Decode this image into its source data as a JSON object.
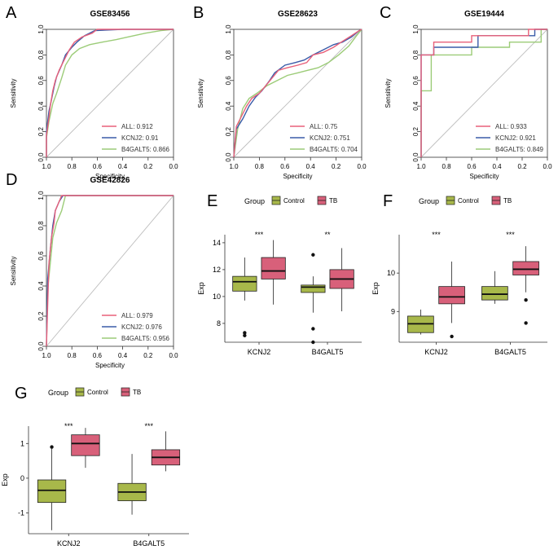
{
  "colors": {
    "all": "#e8607a",
    "kcnj2": "#3a5ba8",
    "b4galt5": "#9ccc78",
    "control": "#a8b84a",
    "tb": "#d8607a",
    "diag": "#bdbdbd",
    "axis": "#333333"
  },
  "chart_data": [
    {
      "panel": "A",
      "type": "line",
      "title": "GSE83456",
      "xlabel": "Specificity",
      "ylabel": "Sensitivity",
      "xticks": [
        "1.0",
        "0.8",
        "0.6",
        "0.4",
        "0.2",
        "0.0"
      ],
      "yticks": [
        "0.0",
        "0.2",
        "0.4",
        "0.6",
        "0.8",
        "1.0"
      ],
      "xlim": [
        1.0,
        0.0
      ],
      "ylim": [
        0.0,
        1.0
      ],
      "legend": "bottom-right",
      "series": [
        {
          "name": "ALL",
          "auc": "0.912",
          "legend_label": "ALL: 0.912",
          "color_key": "all",
          "points": [
            [
              1,
              0
            ],
            [
              1,
              0.17
            ],
            [
              0.98,
              0.31
            ],
            [
              0.97,
              0.4
            ],
            [
              0.95,
              0.52
            ],
            [
              0.93,
              0.6
            ],
            [
              0.9,
              0.68
            ],
            [
              0.86,
              0.76
            ],
            [
              0.82,
              0.84
            ],
            [
              0.78,
              0.9
            ],
            [
              0.72,
              0.94
            ],
            [
              0.64,
              0.97
            ],
            [
              0.6,
              1
            ],
            [
              0,
              1
            ]
          ]
        },
        {
          "name": "KCNJ2",
          "auc": "0.91",
          "legend_label": "KCNJ2: 0.91",
          "color_key": "kcnj2",
          "points": [
            [
              1,
              0
            ],
            [
              1,
              0.2
            ],
            [
              0.98,
              0.36
            ],
            [
              0.96,
              0.45
            ],
            [
              0.94,
              0.55
            ],
            [
              0.92,
              0.63
            ],
            [
              0.88,
              0.72
            ],
            [
              0.85,
              0.8
            ],
            [
              0.8,
              0.86
            ],
            [
              0.76,
              0.9
            ],
            [
              0.7,
              0.95
            ],
            [
              0.62,
              0.99
            ],
            [
              0.4,
              1
            ],
            [
              0,
              1
            ]
          ]
        },
        {
          "name": "B4GALT5",
          "auc": "0.866",
          "legend_label": "B4GALT5: 0.866",
          "color_key": "b4galt5",
          "points": [
            [
              1,
              0
            ],
            [
              1,
              0.15
            ],
            [
              0.98,
              0.28
            ],
            [
              0.95,
              0.42
            ],
            [
              0.92,
              0.5
            ],
            [
              0.88,
              0.62
            ],
            [
              0.85,
              0.72
            ],
            [
              0.8,
              0.8
            ],
            [
              0.74,
              0.85
            ],
            [
              0.66,
              0.88
            ],
            [
              0.56,
              0.9
            ],
            [
              0.45,
              0.92
            ],
            [
              0.36,
              0.94
            ],
            [
              0.22,
              0.97
            ],
            [
              0.1,
              0.99
            ],
            [
              0,
              1
            ]
          ]
        }
      ]
    },
    {
      "panel": "B",
      "type": "line",
      "title": "GSE28623",
      "xlabel": "Specificity",
      "ylabel": "Sensitivity",
      "xticks": [
        "1.0",
        "0.8",
        "0.6",
        "0.4",
        "0.2",
        "0.0"
      ],
      "yticks": [
        "0.0",
        "0.2",
        "0.4",
        "0.6",
        "0.8",
        "1.0"
      ],
      "xlim": [
        1.0,
        0.0
      ],
      "ylim": [
        0.0,
        1.0
      ],
      "legend": "bottom-right",
      "series": [
        {
          "name": "ALL",
          "auc": "0.75",
          "legend_label": "ALL: 0.75",
          "color_key": "all",
          "points": [
            [
              1,
              0
            ],
            [
              0.98,
              0.24
            ],
            [
              0.94,
              0.32
            ],
            [
              0.9,
              0.4
            ],
            [
              0.86,
              0.46
            ],
            [
              0.8,
              0.5
            ],
            [
              0.75,
              0.56
            ],
            [
              0.7,
              0.62
            ],
            [
              0.65,
              0.68
            ],
            [
              0.58,
              0.7
            ],
            [
              0.5,
              0.72
            ],
            [
              0.43,
              0.74
            ],
            [
              0.38,
              0.8
            ],
            [
              0.3,
              0.82
            ],
            [
              0.22,
              0.86
            ],
            [
              0.16,
              0.9
            ],
            [
              0.08,
              0.95
            ],
            [
              0.02,
              0.99
            ],
            [
              0,
              1
            ]
          ]
        },
        {
          "name": "KCNJ2",
          "auc": "0.751",
          "legend_label": "KCNJ2: 0.751",
          "color_key": "kcnj2",
          "points": [
            [
              1,
              0
            ],
            [
              0.98,
              0.22
            ],
            [
              0.93,
              0.3
            ],
            [
              0.88,
              0.4
            ],
            [
              0.83,
              0.47
            ],
            [
              0.78,
              0.52
            ],
            [
              0.72,
              0.6
            ],
            [
              0.68,
              0.66
            ],
            [
              0.6,
              0.72
            ],
            [
              0.52,
              0.74
            ],
            [
              0.45,
              0.76
            ],
            [
              0.38,
              0.8
            ],
            [
              0.3,
              0.84
            ],
            [
              0.22,
              0.88
            ],
            [
              0.15,
              0.9
            ],
            [
              0.08,
              0.94
            ],
            [
              0.02,
              0.99
            ],
            [
              0,
              1
            ]
          ]
        },
        {
          "name": "B4GALT5",
          "auc": "0.704",
          "legend_label": "B4GALT5: 0.704",
          "color_key": "b4galt5",
          "points": [
            [
              1,
              0
            ],
            [
              0.97,
              0.22
            ],
            [
              0.93,
              0.38
            ],
            [
              0.88,
              0.46
            ],
            [
              0.82,
              0.5
            ],
            [
              0.74,
              0.56
            ],
            [
              0.66,
              0.6
            ],
            [
              0.58,
              0.64
            ],
            [
              0.5,
              0.66
            ],
            [
              0.42,
              0.68
            ],
            [
              0.34,
              0.7
            ],
            [
              0.26,
              0.74
            ],
            [
              0.18,
              0.8
            ],
            [
              0.1,
              0.87
            ],
            [
              0.04,
              0.95
            ],
            [
              0,
              1
            ]
          ]
        }
      ]
    },
    {
      "panel": "C",
      "type": "line",
      "title": "GSE19444",
      "xlabel": "Specificity",
      "ylabel": "Sensitivity",
      "xticks": [
        "1.0",
        "0.8",
        "0.6",
        "0.4",
        "0.2",
        "0.0"
      ],
      "yticks": [
        "0.0",
        "0.2",
        "0.4",
        "0.6",
        "0.8",
        "1.0"
      ],
      "xlim": [
        1.0,
        0.0
      ],
      "ylim": [
        0.0,
        1.0
      ],
      "legend": "bottom-right",
      "series": [
        {
          "name": "ALL",
          "auc": "0.933",
          "legend_label": "ALL: 0.933",
          "color_key": "all",
          "points": [
            [
              1,
              0
            ],
            [
              1,
              0.8
            ],
            [
              0.9,
              0.8
            ],
            [
              0.9,
              0.9
            ],
            [
              0.6,
              0.9
            ],
            [
              0.6,
              0.95
            ],
            [
              0.15,
              0.95
            ],
            [
              0.15,
              1
            ],
            [
              0,
              1
            ]
          ]
        },
        {
          "name": "KCNJ2",
          "auc": "0.921",
          "legend_label": "KCNJ2: 0.921",
          "color_key": "kcnj2",
          "points": [
            [
              1,
              0
            ],
            [
              1,
              0.8
            ],
            [
              0.9,
              0.8
            ],
            [
              0.9,
              0.86
            ],
            [
              0.55,
              0.86
            ],
            [
              0.55,
              0.95
            ],
            [
              0.1,
              0.95
            ],
            [
              0.1,
              1
            ],
            [
              0,
              1
            ]
          ]
        },
        {
          "name": "B4GALT5",
          "auc": "0.849",
          "legend_label": "B4GALT5: 0.849",
          "color_key": "b4galt5",
          "points": [
            [
              1,
              0
            ],
            [
              1,
              0.52
            ],
            [
              0.92,
              0.52
            ],
            [
              0.92,
              0.8
            ],
            [
              0.6,
              0.8
            ],
            [
              0.6,
              0.86
            ],
            [
              0.3,
              0.86
            ],
            [
              0.3,
              0.9
            ],
            [
              0.05,
              0.9
            ],
            [
              0.05,
              1
            ],
            [
              0,
              1
            ]
          ]
        }
      ]
    },
    {
      "panel": "D",
      "type": "line",
      "title": "GSE42826",
      "xlabel": "Specificity",
      "ylabel": "Sensitivity",
      "xticks": [
        "1.0",
        "0.8",
        "0.6",
        "0.4",
        "0.2",
        "0.0"
      ],
      "yticks": [
        "0.0",
        "0.2",
        "0.4",
        "0.6",
        "0.8",
        "1.0"
      ],
      "xlim": [
        1.0,
        0.0
      ],
      "ylim": [
        0.0,
        1.0
      ],
      "legend": "bottom-right",
      "series": [
        {
          "name": "ALL",
          "auc": "0.979",
          "legend_label": "ALL: 0.979",
          "color_key": "all",
          "points": [
            [
              1,
              0
            ],
            [
              0.98,
              0.55
            ],
            [
              0.96,
              0.72
            ],
            [
              0.94,
              0.82
            ],
            [
              0.93,
              0.9
            ],
            [
              0.9,
              0.96
            ],
            [
              0.88,
              1
            ],
            [
              0,
              1
            ]
          ]
        },
        {
          "name": "KCNJ2",
          "auc": "0.976",
          "legend_label": "KCNJ2: 0.976",
          "color_key": "kcnj2",
          "points": [
            [
              1,
              0
            ],
            [
              0.99,
              0.45
            ],
            [
              0.97,
              0.64
            ],
            [
              0.95,
              0.8
            ],
            [
              0.93,
              0.9
            ],
            [
              0.9,
              0.96
            ],
            [
              0.87,
              1
            ],
            [
              0,
              1
            ]
          ]
        },
        {
          "name": "B4GALT5",
          "auc": "0.956",
          "legend_label": "B4GALT5: 0.956",
          "color_key": "b4galt5",
          "points": [
            [
              1,
              0
            ],
            [
              0.99,
              0.38
            ],
            [
              0.97,
              0.55
            ],
            [
              0.95,
              0.72
            ],
            [
              0.92,
              0.82
            ],
            [
              0.88,
              0.9
            ],
            [
              0.85,
              1
            ],
            [
              0,
              1
            ]
          ]
        }
      ]
    },
    {
      "panel": "E",
      "type": "box",
      "legend_title": "Group",
      "groups": [
        "Control",
        "TB"
      ],
      "group_keys": [
        "control",
        "tb"
      ],
      "ylabel": "Exp",
      "categories": [
        "KCNJ2",
        "B4GALT5"
      ],
      "ylim": [
        6.6,
        14.6
      ],
      "yticks": [
        8,
        10,
        12,
        14
      ],
      "significance": [
        "***",
        "**"
      ],
      "boxes": [
        {
          "category": "KCNJ2",
          "group": "Control",
          "min": 9.7,
          "q1": 10.4,
          "median": 11.1,
          "q3": 11.5,
          "max": 12.9,
          "outliers": [
            7.3,
            7.1
          ]
        },
        {
          "category": "KCNJ2",
          "group": "TB",
          "min": 9.4,
          "q1": 11.3,
          "median": 11.9,
          "q3": 12.9,
          "max": 14.2,
          "outliers": []
        },
        {
          "category": "B4GALT5",
          "group": "Control",
          "min": 8.8,
          "q1": 10.3,
          "median": 10.7,
          "q3": 10.85,
          "max": 11.5,
          "outliers": [
            13.1,
            7.6,
            6.6
          ]
        },
        {
          "category": "B4GALT5",
          "group": "TB",
          "min": 8.9,
          "q1": 10.6,
          "median": 11.3,
          "q3": 12.0,
          "max": 13.6,
          "outliers": []
        }
      ]
    },
    {
      "panel": "F",
      "type": "box",
      "legend_title": "Group",
      "groups": [
        "Control",
        "TB"
      ],
      "group_keys": [
        "control",
        "tb"
      ],
      "ylabel": "Exp",
      "categories": [
        "KCNJ2",
        "B4GALT5"
      ],
      "ylim": [
        8.2,
        11.0
      ],
      "yticks": [
        9,
        10
      ],
      "significance": [
        "***",
        "***"
      ],
      "boxes": [
        {
          "category": "KCNJ2",
          "group": "Control",
          "min": 8.4,
          "q1": 8.45,
          "median": 8.68,
          "q3": 8.88,
          "max": 9.05,
          "outliers": []
        },
        {
          "category": "KCNJ2",
          "group": "TB",
          "min": 8.7,
          "q1": 9.2,
          "median": 9.38,
          "q3": 9.65,
          "max": 10.3,
          "outliers": [
            8.35
          ]
        },
        {
          "category": "B4GALT5",
          "group": "Control",
          "min": 9.2,
          "q1": 9.3,
          "median": 9.45,
          "q3": 9.65,
          "max": 10.05,
          "outliers": []
        },
        {
          "category": "B4GALT5",
          "group": "TB",
          "min": 9.5,
          "q1": 9.95,
          "median": 10.1,
          "q3": 10.3,
          "max": 10.7,
          "outliers": [
            9.3,
            8.7
          ]
        }
      ]
    },
    {
      "panel": "G",
      "type": "box",
      "legend_title": "Group",
      "groups": [
        "Control",
        "TB"
      ],
      "group_keys": [
        "control",
        "tb"
      ],
      "ylabel": "Exp",
      "categories": [
        "KCNJ2",
        "B4GALT5"
      ],
      "ylim": [
        -1.6,
        1.5
      ],
      "yticks": [
        -1,
        0,
        1
      ],
      "significance": [
        "***",
        "***"
      ],
      "boxes": [
        {
          "category": "KCNJ2",
          "group": "Control",
          "min": -1.5,
          "q1": -0.7,
          "median": -0.35,
          "q3": -0.05,
          "max": 0.85,
          "outliers": [
            0.9
          ]
        },
        {
          "category": "KCNJ2",
          "group": "TB",
          "min": 0.3,
          "q1": 0.65,
          "median": 1.0,
          "q3": 1.25,
          "max": 1.45,
          "outliers": []
        },
        {
          "category": "B4GALT5",
          "group": "Control",
          "min": -1.05,
          "q1": -0.65,
          "median": -0.4,
          "q3": -0.15,
          "max": 0.7,
          "outliers": []
        },
        {
          "category": "B4GALT5",
          "group": "TB",
          "min": 0.2,
          "q1": 0.38,
          "median": 0.6,
          "q3": 0.82,
          "max": 1.35,
          "outliers": []
        }
      ]
    }
  ]
}
